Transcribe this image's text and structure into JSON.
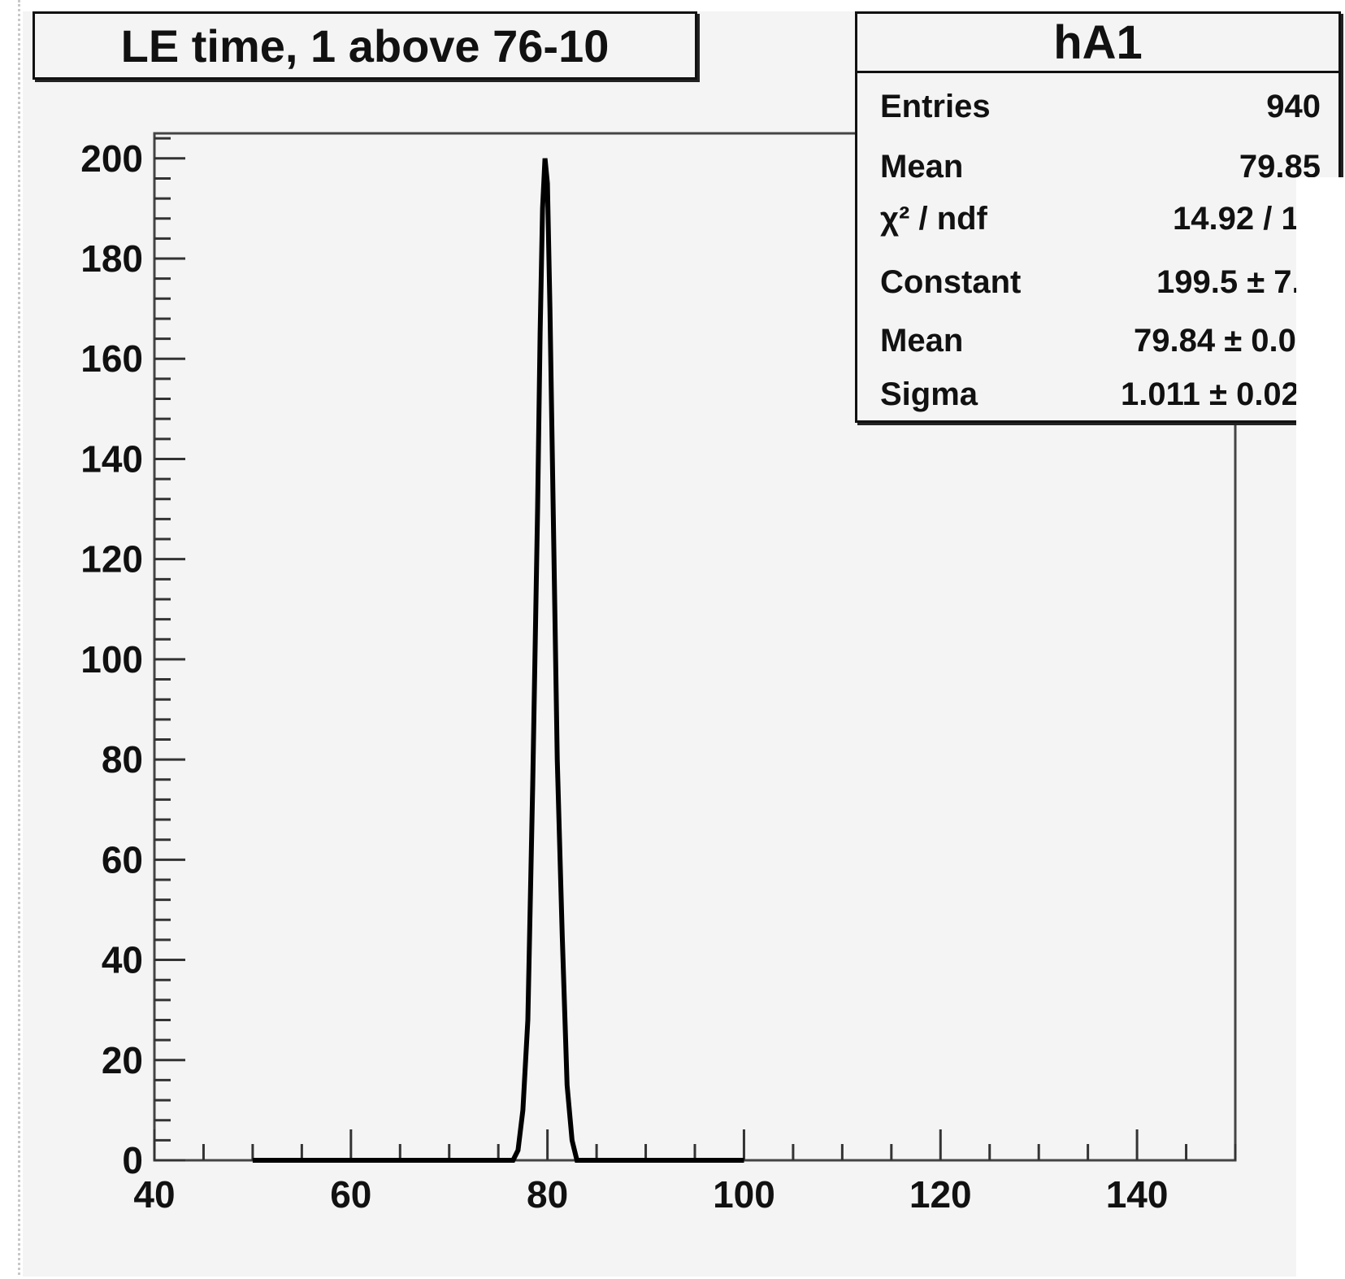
{
  "title": "LE time, 1 above 76-10",
  "stats": {
    "name": "hA1",
    "rows": [
      {
        "label": "Entries",
        "value": "940"
      },
      {
        "label": "Mean",
        "value": "79.85"
      },
      {
        "label": "χ² / ndf",
        "value": "14.92 / 1"
      },
      {
        "label": "Constant",
        "value": "199.5 ± 7."
      },
      {
        "label": "Mean",
        "value": "79.84 ± 0.0"
      },
      {
        "label": "Sigma",
        "value": "1.011 ± 0.02"
      }
    ]
  },
  "chart_data": {
    "type": "line",
    "xlim": [
      40,
      150
    ],
    "ylim": [
      0,
      205
    ],
    "x_ticks": [
      40,
      60,
      80,
      100,
      120,
      140
    ],
    "x_tick_labels": [
      "40",
      "60",
      "80",
      "100",
      "120",
      "140"
    ],
    "y_ticks": [
      0,
      20,
      40,
      60,
      80,
      100,
      120,
      140,
      160,
      180,
      200
    ],
    "y_tick_labels": [
      "0",
      "20",
      "40",
      "60",
      "80",
      "100",
      "120",
      "140",
      "160",
      "180",
      "200"
    ],
    "series": [
      {
        "x": [
          50,
          76.5,
          77,
          77.5,
          78,
          78.5,
          79,
          79.25,
          79.5,
          79.75,
          80,
          80.25,
          80.5,
          80.75,
          81,
          81.5,
          82,
          82.5,
          83,
          83.5,
          100
        ],
        "y": [
          0,
          0,
          2,
          10,
          28,
          75,
          130,
          165,
          190,
          200,
          195,
          170,
          140,
          110,
          80,
          45,
          15,
          4,
          0,
          0,
          0
        ]
      }
    ],
    "grid": false,
    "xlabel": "",
    "ylabel": ""
  }
}
